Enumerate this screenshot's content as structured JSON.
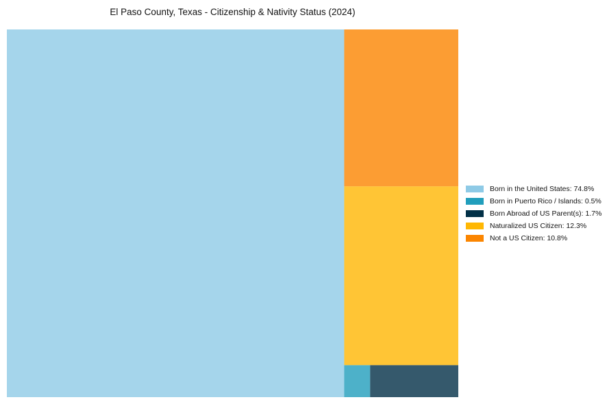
{
  "chart_data": {
    "type": "treemap",
    "title": "El Paso County, Texas - Citizenship & Nativity Status (2024)",
    "unit": "%",
    "items": [
      {
        "label": "Born in the United States",
        "value": 74.8,
        "color": "#8ecae6",
        "legend": "Born in the United States: 74.8%"
      },
      {
        "label": "Born in Puerto Rico / Islands",
        "value": 0.5,
        "color": "#219ebc",
        "legend": "Born in Puerto Rico / Islands: 0.5%"
      },
      {
        "label": "Born Abroad of US Parent(s)",
        "value": 1.7,
        "color": "#023047",
        "legend": "Born Abroad of US Parent(s): 1.7%"
      },
      {
        "label": "Naturalized US Citizen",
        "value": 12.3,
        "color": "#ffb703",
        "legend": "Naturalized US Citizen: 12.3%"
      },
      {
        "label": "Not a US Citizen",
        "value": 10.8,
        "color": "#fb8500",
        "legend": "Not a US Citizen: 10.8%"
      }
    ],
    "legend_position": "right"
  }
}
